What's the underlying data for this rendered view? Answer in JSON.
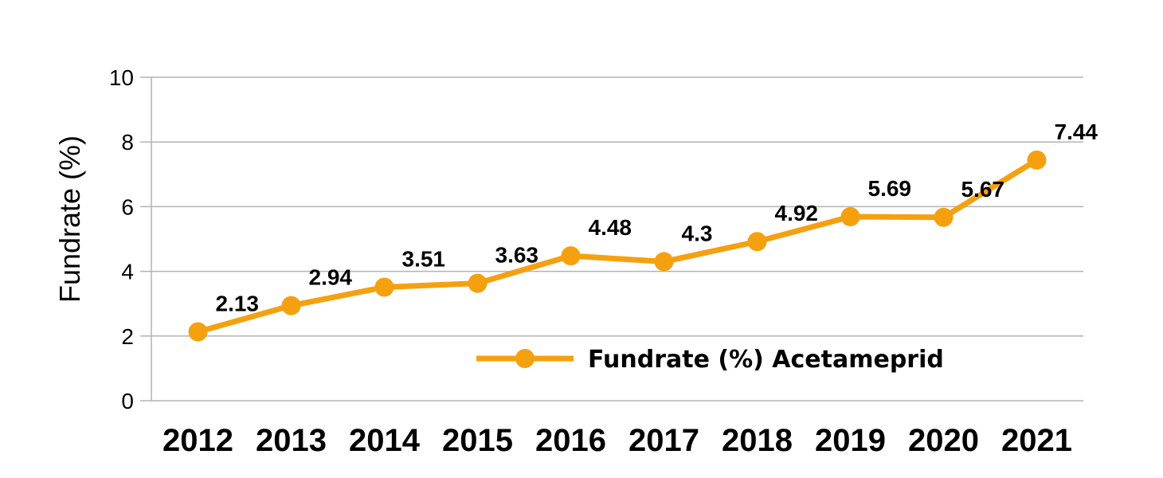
{
  "chart_data": {
    "type": "line",
    "categories": [
      "2012",
      "2013",
      "2014",
      "2015",
      "2016",
      "2017",
      "2018",
      "2019",
      "2020",
      "2021"
    ],
    "series": [
      {
        "name": "Fundrate (%) Acetameprid",
        "values": [
          2.13,
          2.94,
          3.51,
          3.63,
          4.48,
          4.3,
          4.92,
          5.69,
          5.67,
          7.44
        ],
        "labels": [
          "2.13",
          "2.94",
          "3.51",
          "3.63",
          "4.48",
          "4.3",
          "4.92",
          "5.69",
          "5.67",
          "7.44"
        ],
        "color": "#f5a00f"
      }
    ],
    "title": "",
    "xlabel": "",
    "ylabel": "Fundrate (%)",
    "ylim": [
      0,
      10
    ],
    "yticks": [
      "0",
      "2",
      "4",
      "6",
      "8",
      "10"
    ],
    "grid": true,
    "legend": "bottom-center"
  }
}
